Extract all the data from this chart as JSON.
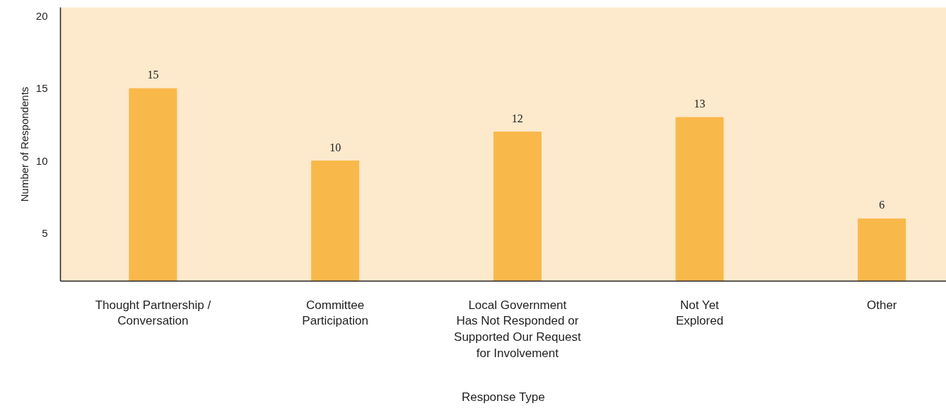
{
  "chart_data": {
    "type": "bar",
    "xlabel": "Response Type",
    "ylabel": "Number of Respondents",
    "categories": [
      "Thought Partnership /\nConversation",
      "Committee\nParticipation",
      "Local Government\nHas Not Responded or\nSupported Our Request\nfor Involvement",
      "Not Yet\nExplored",
      "Other"
    ],
    "values": [
      15,
      10,
      12,
      13,
      6
    ],
    "color": "#f9b84a",
    "ylim": [
      1.7,
      20.6
    ],
    "yticks": [
      5,
      10,
      15,
      20
    ],
    "grid": false,
    "data_labels": true
  }
}
